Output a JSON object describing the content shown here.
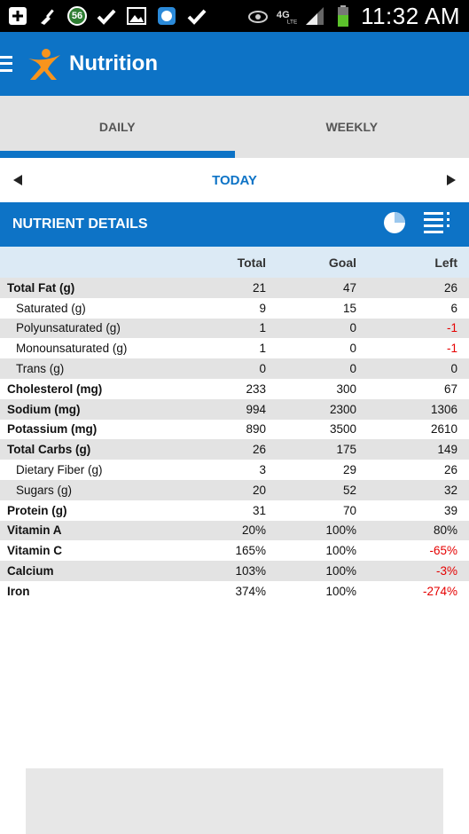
{
  "status_bar": {
    "time": "11:32 AM",
    "badge_count": "56",
    "network": "4G LTE"
  },
  "app_bar": {
    "title": "Nutrition"
  },
  "tabs": [
    {
      "label": "DAILY",
      "active": true
    },
    {
      "label": "WEEKLY",
      "active": false
    }
  ],
  "date_nav": {
    "label": "TODAY"
  },
  "section": {
    "title": "NUTRIENT DETAILS"
  },
  "table": {
    "headers": {
      "total": "Total",
      "goal": "Goal",
      "left": "Left"
    },
    "rows": [
      {
        "name": "Total Fat (g)",
        "total": "21",
        "goal": "47",
        "left": "26"
      },
      {
        "name": "Saturated (g)",
        "total": "9",
        "goal": "15",
        "left": "6"
      },
      {
        "name": "Polyunsaturated (g)",
        "total": "1",
        "goal": "0",
        "left": "-1"
      },
      {
        "name": "Monounsaturated (g)",
        "total": "1",
        "goal": "0",
        "left": "-1"
      },
      {
        "name": "Trans (g)",
        "total": "0",
        "goal": "0",
        "left": "0"
      },
      {
        "name": "Cholesterol (mg)",
        "total": "233",
        "goal": "300",
        "left": "67"
      },
      {
        "name": "Sodium (mg)",
        "total": "994",
        "goal": "2300",
        "left": "1306"
      },
      {
        "name": "Potassium (mg)",
        "total": "890",
        "goal": "3500",
        "left": "2610"
      },
      {
        "name": "Total Carbs (g)",
        "total": "26",
        "goal": "175",
        "left": "149"
      },
      {
        "name": "Dietary Fiber (g)",
        "total": "3",
        "goal": "29",
        "left": "26"
      },
      {
        "name": "Sugars (g)",
        "total": "20",
        "goal": "52",
        "left": "32"
      },
      {
        "name": "Protein (g)",
        "total": "31",
        "goal": "70",
        "left": "39"
      },
      {
        "name": "Vitamin A",
        "total": "20%",
        "goal": "100%",
        "left": "80%"
      },
      {
        "name": "Vitamin C",
        "total": "165%",
        "goal": "100%",
        "left": "-65%"
      },
      {
        "name": "Calcium",
        "total": "103%",
        "goal": "100%",
        "left": "-3%"
      },
      {
        "name": "Iron",
        "total": "374%",
        "goal": "100%",
        "left": "-274%"
      }
    ]
  },
  "colors": {
    "brand_blue": "#0d73c6",
    "negative": "#e50000",
    "row_alt": "#e3e3e3"
  },
  "icons": {
    "status": [
      "add-box-icon",
      "broom-icon",
      "badge-56-icon",
      "check-icon",
      "image-icon",
      "usa-today-icon",
      "check-icon",
      "eye-icon",
      "4g-lte-icon",
      "signal-icon",
      "battery-icon"
    ],
    "app_bar": [
      "hamburger-icon",
      "myfitnesspal-logo"
    ],
    "section": [
      "pie-chart-icon",
      "list-settings-icon"
    ]
  }
}
